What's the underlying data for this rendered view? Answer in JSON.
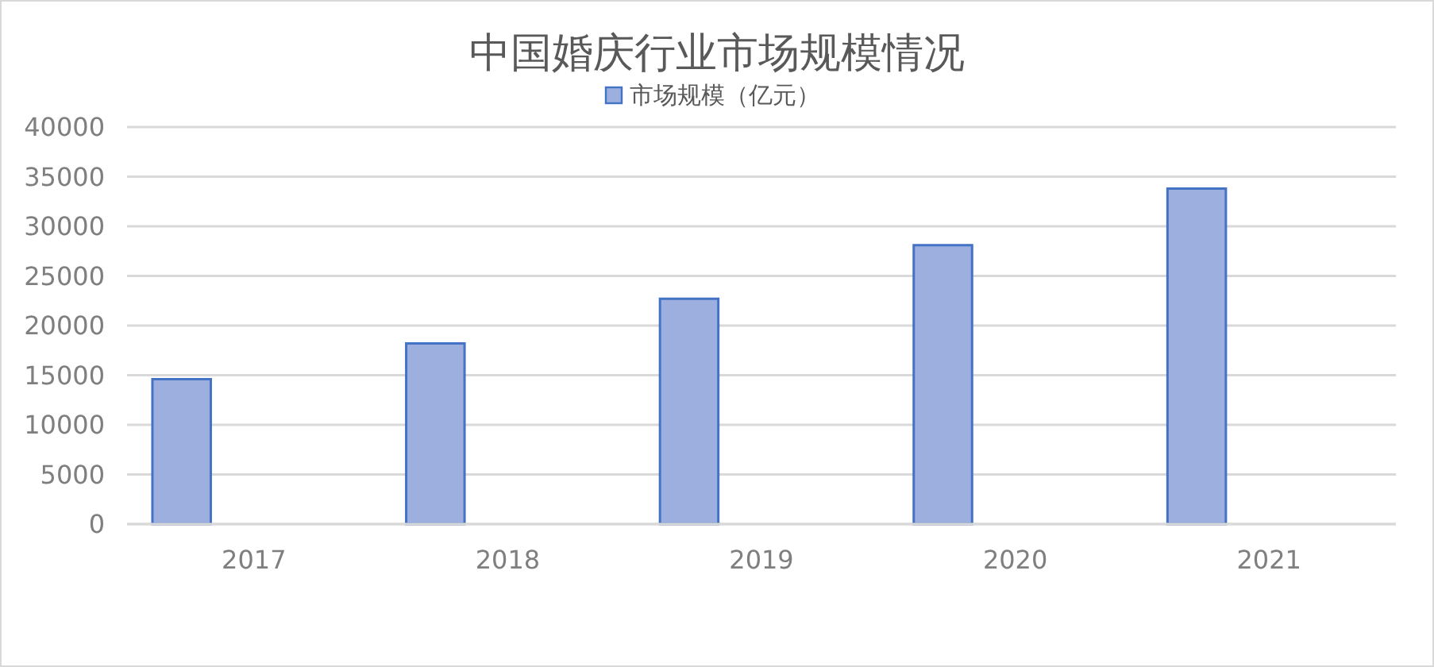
{
  "chart_data": {
    "type": "bar",
    "title": "中国婚庆行业市场规模情况",
    "categories": [
      "2017",
      "2018",
      "2019",
      "2020",
      "2021"
    ],
    "series": [
      {
        "name": "市场规模（亿元）",
        "color": "#9dafdf",
        "values": [
          14600,
          18200,
          22700,
          28100,
          33800
        ]
      }
    ],
    "ylim": [
      0,
      40000
    ],
    "yticks": [
      0,
      5000,
      10000,
      15000,
      20000,
      25000,
      30000,
      35000,
      40000
    ],
    "grid": "y",
    "legend": "top"
  }
}
